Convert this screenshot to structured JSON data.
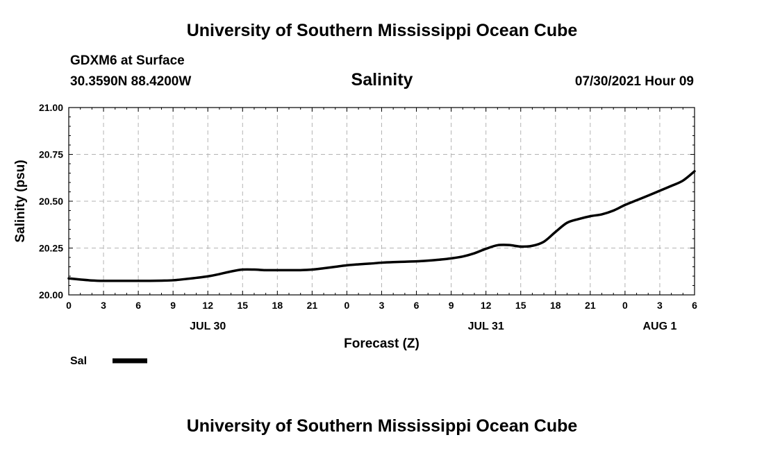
{
  "header": {
    "title": "University of Southern Mississippi Ocean Cube",
    "station_name": "GDXM6 at Surface",
    "station_coords": "30.3590N  88.4200W",
    "plot_title": "Salinity",
    "forecast_time": "07/30/2021 Hour 09"
  },
  "footer": {
    "title": "University of Southern Mississippi Ocean Cube"
  },
  "chart_data": {
    "type": "line",
    "title": "Salinity",
    "xlabel": "Forecast (Z)",
    "ylabel": "Salinity (psu)",
    "ylim": [
      20.0,
      21.0
    ],
    "yticks": [
      "20.00",
      "20.25",
      "20.50",
      "20.75",
      "21.00"
    ],
    "xlim_hours": [
      0,
      54
    ],
    "xtick_hours": [
      0,
      3,
      6,
      9,
      12,
      15,
      18,
      21,
      24,
      27,
      30,
      33,
      36,
      39,
      42,
      45,
      48,
      51,
      54
    ],
    "xtick_labels": [
      "0",
      "3",
      "6",
      "9",
      "12",
      "15",
      "18",
      "21",
      "0",
      "3",
      "6",
      "9",
      "12",
      "15",
      "18",
      "21",
      "0",
      "3",
      "6"
    ],
    "date_labels": [
      {
        "hour": 12,
        "label": "JUL 30"
      },
      {
        "hour": 36,
        "label": "JUL 31"
      },
      {
        "hour": 51,
        "label": "AUG 1"
      }
    ],
    "grid": true,
    "legend": {
      "position": "bottom-left",
      "label": "Sal"
    },
    "series": [
      {
        "name": "Sal",
        "color": "#000000",
        "x": [
          0,
          1,
          2,
          3,
          4,
          5,
          6,
          7,
          8,
          9,
          10,
          11,
          12,
          13,
          14,
          15,
          16,
          17,
          18,
          19,
          20,
          21,
          22,
          23,
          24,
          25,
          26,
          27,
          28,
          29,
          30,
          31,
          32,
          33,
          34,
          35,
          36,
          37,
          38,
          39,
          40,
          41,
          42,
          43,
          44,
          45,
          46,
          47,
          48,
          49,
          50,
          51,
          52,
          53,
          54
        ],
        "values": [
          20.088,
          20.082,
          20.077,
          20.075,
          20.075,
          20.075,
          20.075,
          20.075,
          20.076,
          20.078,
          20.084,
          20.091,
          20.099,
          20.111,
          20.125,
          20.135,
          20.135,
          20.132,
          20.132,
          20.132,
          20.132,
          20.135,
          20.142,
          20.15,
          20.158,
          20.163,
          20.167,
          20.172,
          20.175,
          20.177,
          20.179,
          20.183,
          20.188,
          20.195,
          20.205,
          20.222,
          20.246,
          20.265,
          20.266,
          20.258,
          20.262,
          20.284,
          20.336,
          20.385,
          20.405,
          20.42,
          20.43,
          20.45,
          20.48,
          20.505,
          20.53,
          20.556,
          20.582,
          20.61,
          20.66
        ]
      }
    ]
  }
}
